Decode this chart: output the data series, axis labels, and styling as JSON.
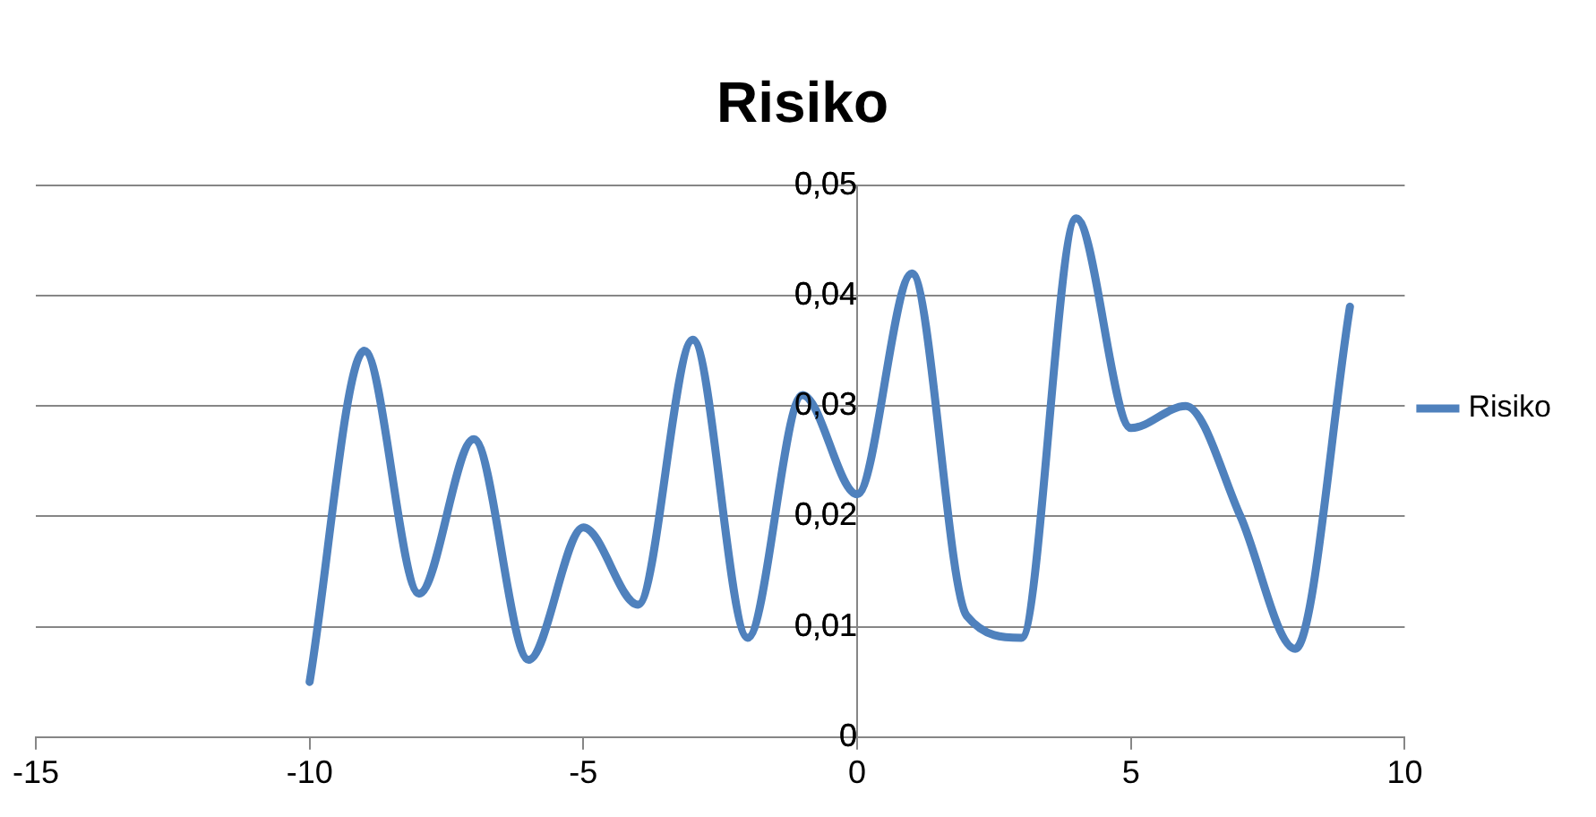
{
  "chart_data": {
    "type": "line",
    "title": "Risiko",
    "x": [
      -10,
      -9,
      -8,
      -7,
      -6,
      -5,
      -4,
      -3,
      -2,
      -1,
      0,
      1,
      2,
      3,
      4,
      5,
      6,
      7,
      8,
      9
    ],
    "series": [
      {
        "name": "Risiko",
        "color": "#4f81bd",
        "values": [
          0.005,
          0.035,
          0.013,
          0.027,
          0.007,
          0.019,
          0.012,
          0.036,
          0.009,
          0.031,
          0.022,
          0.042,
          0.011,
          0.009,
          0.047,
          0.028,
          0.03,
          0.02,
          0.008,
          0.039
        ]
      }
    ],
    "xlim": [
      -15,
      10
    ],
    "xticks": [
      -15,
      -10,
      -5,
      0,
      5,
      10
    ],
    "ylim": [
      0,
      0.05
    ],
    "yticks": [
      {
        "value": 0,
        "label": "0"
      },
      {
        "value": 0.01,
        "label": "0,01"
      },
      {
        "value": 0.02,
        "label": "0,02"
      },
      {
        "value": 0.03,
        "label": "0,03"
      },
      {
        "value": 0.04,
        "label": "0,04"
      },
      {
        "value": 0.05,
        "label": "0,05"
      }
    ],
    "grid": "y",
    "legend": "right",
    "marker": "none",
    "line_style": "solid"
  }
}
